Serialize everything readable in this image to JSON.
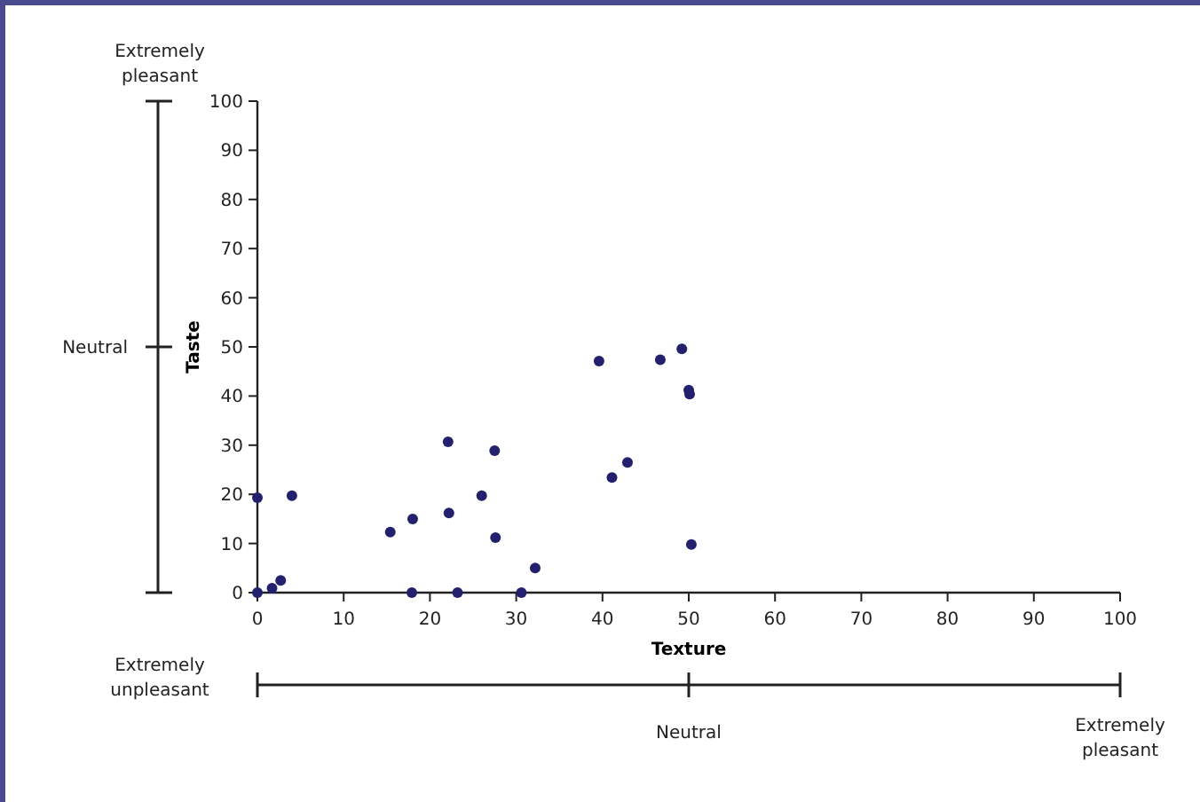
{
  "chart_data": {
    "type": "scatter",
    "xlabel": "Texture",
    "ylabel": "Taste",
    "x": [
      0,
      0,
      1.7,
      2.7,
      4.0,
      15.4,
      18.0,
      17.9,
      22.1,
      22.2,
      23.2,
      26.0,
      27.5,
      27.6,
      30.6,
      32.2,
      39.6,
      41.1,
      42.9,
      46.7,
      49.2,
      50.0,
      50.1,
      50.3
    ],
    "series": [
      {
        "color": "#23216e",
        "values": [
          0,
          19.3,
          0.9,
          2.5,
          19.7,
          12.3,
          15.0,
          0,
          30.7,
          16.2,
          0,
          19.7,
          28.9,
          11.2,
          0,
          5.0,
          47.1,
          23.4,
          26.5,
          47.4,
          49.6,
          41.2,
          40.4,
          9.8
        ]
      }
    ],
    "xlim": [
      0,
      100
    ],
    "xticks": [
      0,
      10,
      20,
      30,
      40,
      50,
      60,
      70,
      80,
      90,
      100
    ],
    "ylim": [
      0,
      100
    ],
    "yticks": [
      0,
      10,
      20,
      30,
      40,
      50,
      60,
      70,
      80,
      90,
      100
    ],
    "marker": "circle",
    "grid": false,
    "annotations": [
      "Extremely pleasant",
      "Neutral",
      "Extremely unpleasant",
      "Neutral",
      "Extremely pleasant"
    ]
  }
}
